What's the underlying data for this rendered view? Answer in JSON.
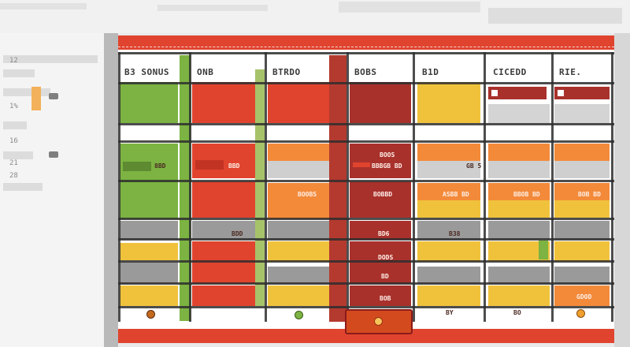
{
  "columns": [
    {
      "id": "col1",
      "header": "B3 SONUS"
    },
    {
      "id": "col2",
      "header": "ONB"
    },
    {
      "id": "col3",
      "header": "BTRDO"
    },
    {
      "id": "col4",
      "header": "BOBS"
    },
    {
      "id": "col5",
      "header": "B1D"
    },
    {
      "id": "col6",
      "header": "CICEDD"
    },
    {
      "id": "col7",
      "header": "RIE."
    }
  ],
  "cell_labels": {
    "c1_r3": "8BD",
    "c2_r3": "BBD",
    "c4_r3": "BOOS",
    "c4_r3b": "BBBGB BD",
    "c6_r3": "GB 5",
    "c4_r4": "BOBBD",
    "c3_r4": "BOOBS",
    "c5_r4": "ASBB BD",
    "c6_r4": "BBOB BD",
    "c7_r4": "BOB BD",
    "c2_r5": "BDD",
    "c4_r5": "BD6",
    "c5_r5": "B38",
    "c4_r6": "DODS",
    "c4_r7": "BD",
    "c4_r8": "BOB",
    "c5_r8": "BY",
    "c6_r8": "BO",
    "c7_r8": "GDOD"
  },
  "left_panel": {
    "labels": [
      "12",
      "1%",
      "16",
      "21",
      "28"
    ]
  },
  "colors": {
    "accent_red": "#e0442e",
    "dark_red": "#a8312c",
    "orange": "#f38a3a",
    "yellow": "#f0c23c",
    "green": "#7cb342",
    "grey": "#9a9a9a"
  }
}
